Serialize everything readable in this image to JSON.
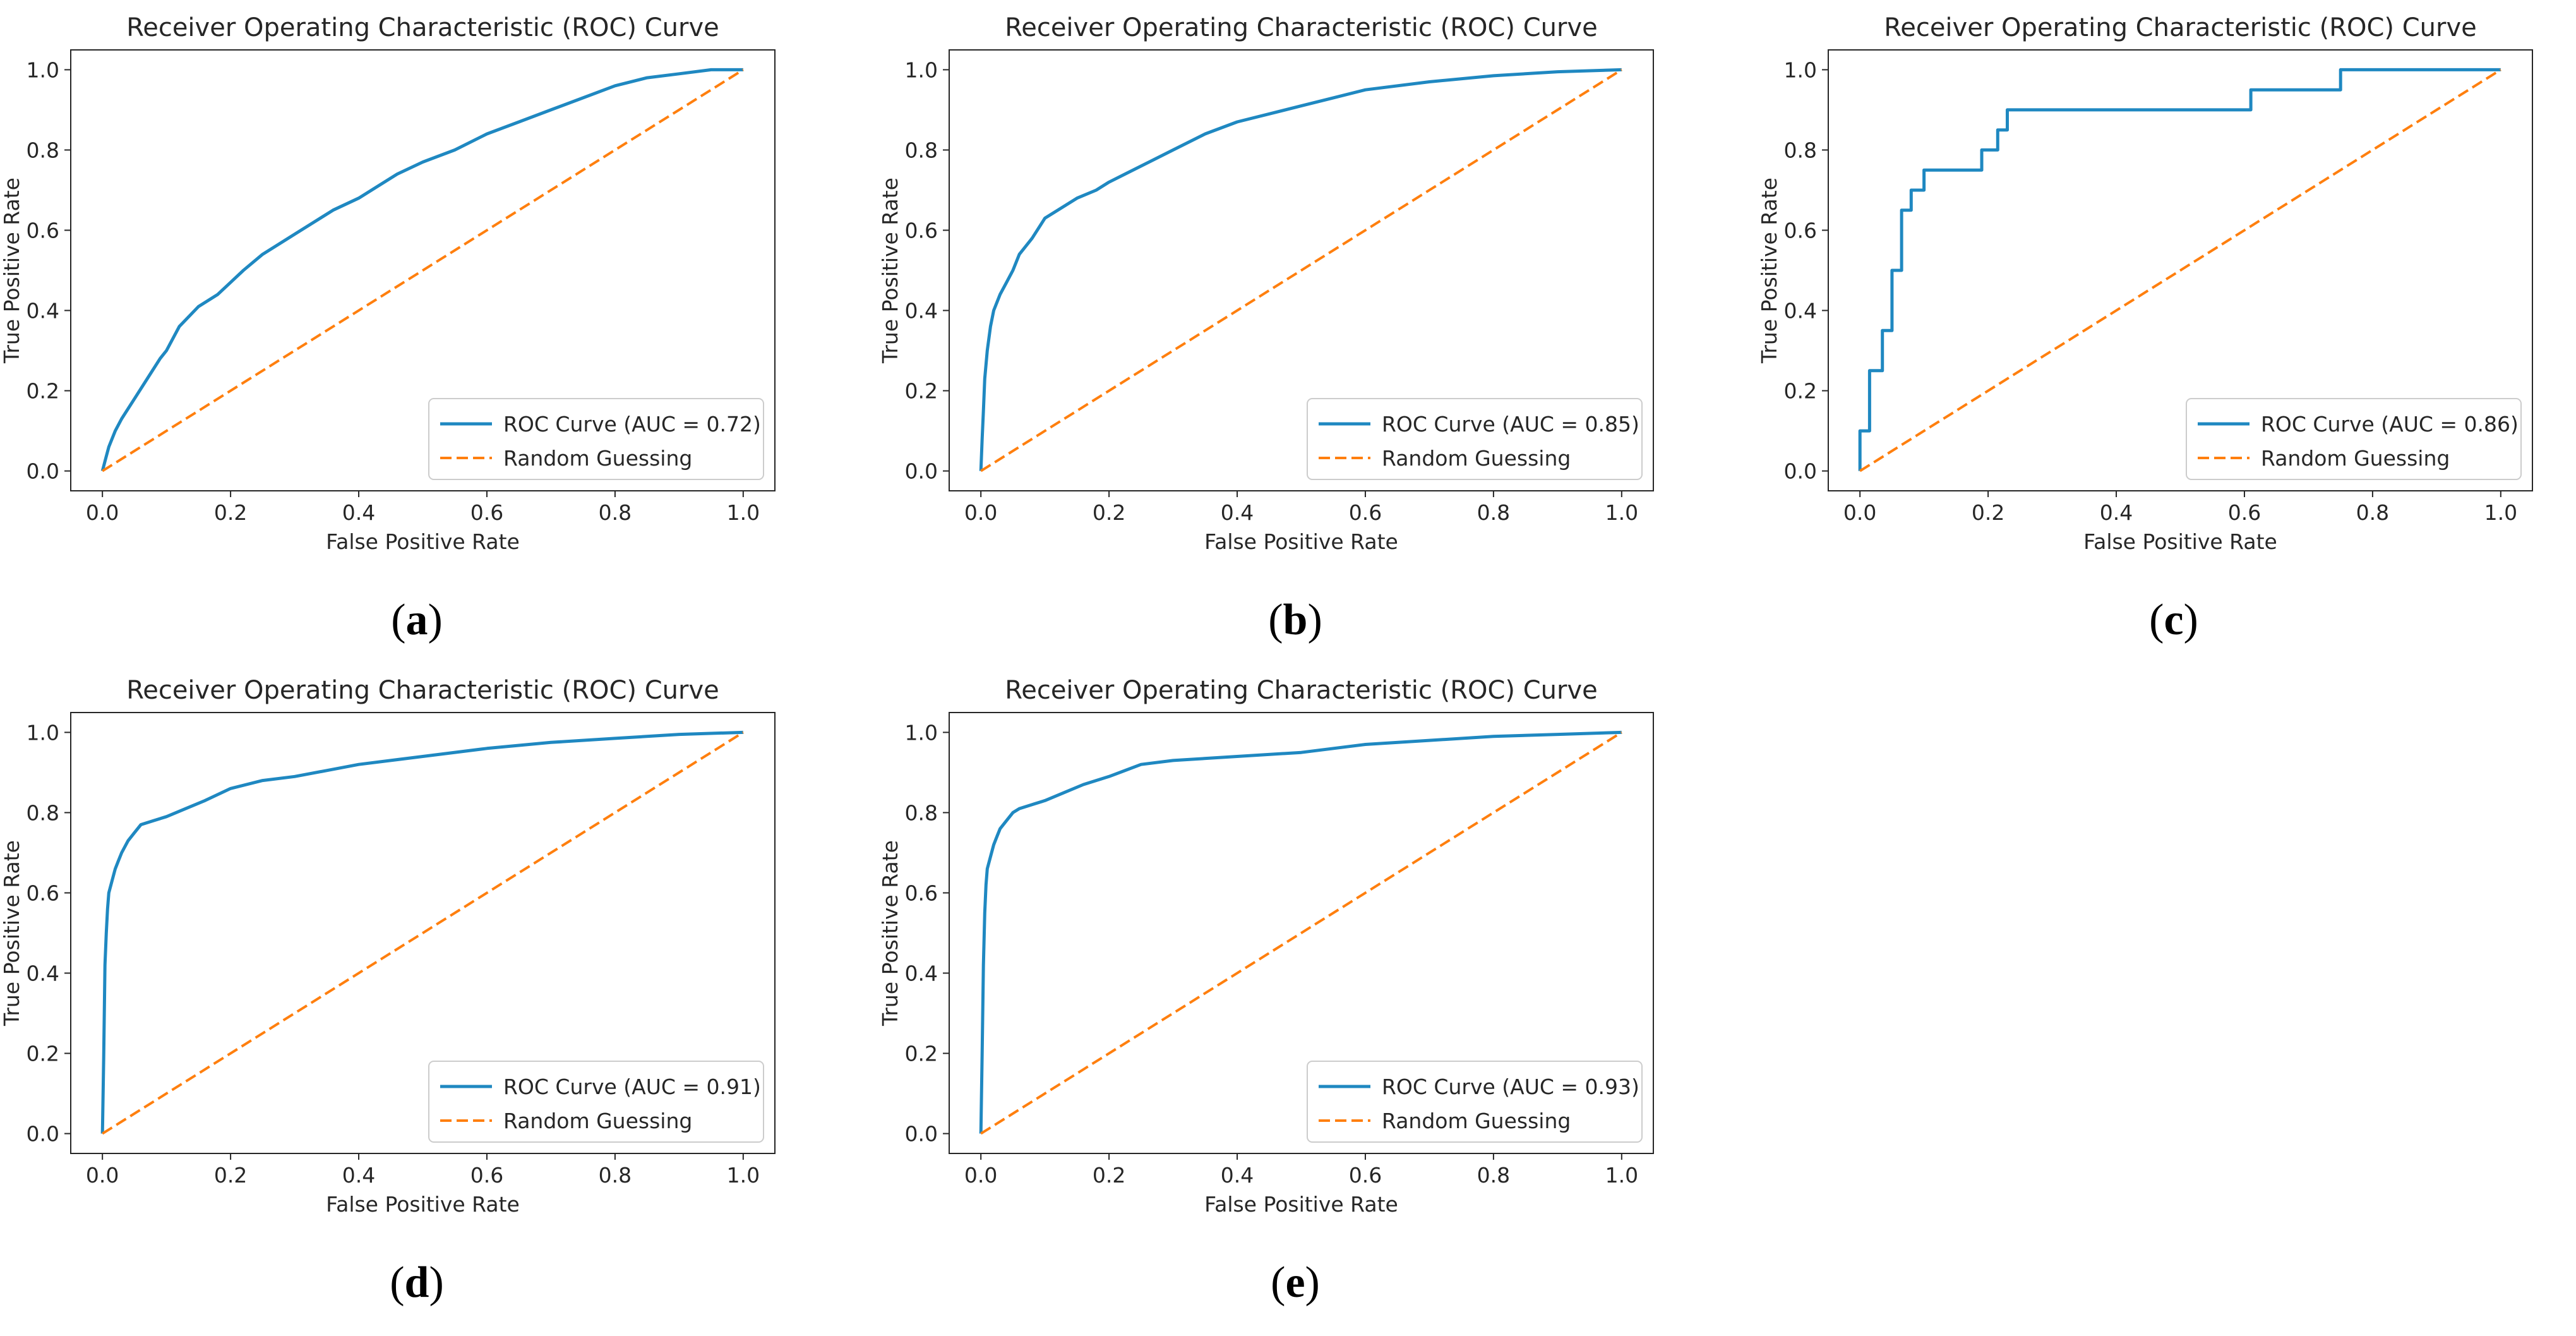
{
  "colors": {
    "roc": "#1f88c1",
    "random": "#ff7f0e",
    "axis": "#262626"
  },
  "chart_data": [
    {
      "type": "line",
      "caption": "a",
      "title": "Receiver Operating Characteristic (ROC) Curve",
      "xlabel": "False Positive Rate",
      "ylabel": "True Positive Rate",
      "xlim": [
        0,
        1
      ],
      "ylim": [
        0,
        1
      ],
      "xticks": [
        "0.0",
        "0.2",
        "0.4",
        "0.6",
        "0.8",
        "1.0"
      ],
      "yticks": [
        "0.0",
        "0.2",
        "0.4",
        "0.6",
        "0.8",
        "1.0"
      ],
      "legend_position": "lower-right",
      "grid": false,
      "series": [
        {
          "name": "ROC Curve (AUC = 0.72)",
          "style": "solid",
          "color": "#1f88c1",
          "x": [
            0,
            0.005,
            0.01,
            0.02,
            0.03,
            0.05,
            0.07,
            0.09,
            0.1,
            0.12,
            0.15,
            0.18,
            0.2,
            0.22,
            0.25,
            0.28,
            0.3,
            0.33,
            0.36,
            0.4,
            0.43,
            0.46,
            0.5,
            0.55,
            0.6,
            0.65,
            0.7,
            0.75,
            0.8,
            0.85,
            0.9,
            0.95,
            1.0
          ],
          "y": [
            0,
            0.03,
            0.06,
            0.1,
            0.13,
            0.18,
            0.23,
            0.28,
            0.3,
            0.36,
            0.41,
            0.44,
            0.47,
            0.5,
            0.54,
            0.57,
            0.59,
            0.62,
            0.65,
            0.68,
            0.71,
            0.74,
            0.77,
            0.8,
            0.84,
            0.87,
            0.9,
            0.93,
            0.96,
            0.98,
            0.99,
            1.0,
            1.0
          ]
        },
        {
          "name": "Random Guessing",
          "style": "dashed",
          "color": "#ff7f0e",
          "x": [
            0,
            1
          ],
          "y": [
            0,
            1
          ]
        }
      ]
    },
    {
      "type": "line",
      "caption": "b",
      "title": "Receiver Operating Characteristic (ROC) Curve",
      "xlabel": "False Positive Rate",
      "ylabel": "True Positive Rate",
      "xlim": [
        0,
        1
      ],
      "ylim": [
        0,
        1
      ],
      "xticks": [
        "0.0",
        "0.2",
        "0.4",
        "0.6",
        "0.8",
        "1.0"
      ],
      "yticks": [
        "0.0",
        "0.2",
        "0.4",
        "0.6",
        "0.8",
        "1.0"
      ],
      "legend_position": "lower-right",
      "grid": false,
      "series": [
        {
          "name": "ROC Curve (AUC = 0.85)",
          "style": "solid",
          "color": "#1f88c1",
          "x": [
            0,
            0.002,
            0.004,
            0.006,
            0.01,
            0.015,
            0.02,
            0.03,
            0.04,
            0.05,
            0.06,
            0.08,
            0.1,
            0.12,
            0.15,
            0.18,
            0.2,
            0.25,
            0.3,
            0.35,
            0.4,
            0.45,
            0.5,
            0.55,
            0.6,
            0.7,
            0.8,
            0.9,
            1.0
          ],
          "y": [
            0,
            0.08,
            0.15,
            0.23,
            0.3,
            0.36,
            0.4,
            0.44,
            0.47,
            0.5,
            0.54,
            0.58,
            0.63,
            0.65,
            0.68,
            0.7,
            0.72,
            0.76,
            0.8,
            0.84,
            0.87,
            0.89,
            0.91,
            0.93,
            0.95,
            0.97,
            0.985,
            0.995,
            1.0
          ]
        },
        {
          "name": "Random Guessing",
          "style": "dashed",
          "color": "#ff7f0e",
          "x": [
            0,
            1
          ],
          "y": [
            0,
            1
          ]
        }
      ]
    },
    {
      "type": "line",
      "caption": "c",
      "title": "Receiver Operating Characteristic (ROC) Curve",
      "xlabel": "False Positive Rate",
      "ylabel": "True Positive Rate",
      "xlim": [
        0,
        1
      ],
      "ylim": [
        0,
        1
      ],
      "xticks": [
        "0.0",
        "0.2",
        "0.4",
        "0.6",
        "0.8",
        "1.0"
      ],
      "yticks": [
        "0.0",
        "0.2",
        "0.4",
        "0.6",
        "0.8",
        "1.0"
      ],
      "legend_position": "lower-right",
      "grid": false,
      "series": [
        {
          "name": "ROC Curve (AUC = 0.86)",
          "style": "solid",
          "color": "#1f88c1",
          "x": [
            0,
            0,
            0.015,
            0.015,
            0.035,
            0.035,
            0.05,
            0.05,
            0.065,
            0.065,
            0.08,
            0.08,
            0.085,
            0.085,
            0.1,
            0.1,
            0.19,
            0.19,
            0.215,
            0.215,
            0.23,
            0.23,
            0.61,
            0.61,
            0.75,
            0.75,
            1.0
          ],
          "y": [
            0,
            0.1,
            0.1,
            0.25,
            0.25,
            0.35,
            0.35,
            0.5,
            0.5,
            0.65,
            0.65,
            0.7,
            0.7,
            0.7,
            0.7,
            0.75,
            0.75,
            0.8,
            0.8,
            0.85,
            0.85,
            0.9,
            0.9,
            0.95,
            0.95,
            1.0,
            1.0
          ]
        },
        {
          "name": "Random Guessing",
          "style": "dashed",
          "color": "#ff7f0e",
          "x": [
            0,
            1
          ],
          "y": [
            0,
            1
          ]
        }
      ]
    },
    {
      "type": "line",
      "caption": "d",
      "title": "Receiver Operating Characteristic (ROC) Curve",
      "xlabel": "False Positive Rate",
      "ylabel": "True Positive Rate",
      "xlim": [
        0,
        1
      ],
      "ylim": [
        0,
        1
      ],
      "xticks": [
        "0.0",
        "0.2",
        "0.4",
        "0.6",
        "0.8",
        "1.0"
      ],
      "yticks": [
        "0.0",
        "0.2",
        "0.4",
        "0.6",
        "0.8",
        "1.0"
      ],
      "legend_position": "lower-right",
      "grid": false,
      "series": [
        {
          "name": "ROC Curve (AUC = 0.91)",
          "style": "solid",
          "color": "#1f88c1",
          "x": [
            0,
            0.002,
            0.004,
            0.006,
            0.008,
            0.01,
            0.015,
            0.02,
            0.025,
            0.03,
            0.04,
            0.05,
            0.06,
            0.08,
            0.1,
            0.13,
            0.16,
            0.2,
            0.25,
            0.3,
            0.35,
            0.4,
            0.5,
            0.6,
            0.7,
            0.8,
            0.9,
            1.0
          ],
          "y": [
            0,
            0.19,
            0.42,
            0.5,
            0.56,
            0.6,
            0.63,
            0.66,
            0.68,
            0.7,
            0.73,
            0.75,
            0.77,
            0.78,
            0.79,
            0.81,
            0.83,
            0.86,
            0.88,
            0.89,
            0.905,
            0.92,
            0.94,
            0.96,
            0.975,
            0.985,
            0.995,
            1.0
          ]
        },
        {
          "name": "Random Guessing",
          "style": "dashed",
          "color": "#ff7f0e",
          "x": [
            0,
            1
          ],
          "y": [
            0,
            1
          ]
        }
      ]
    },
    {
      "type": "line",
      "caption": "e",
      "title": "Receiver Operating Characteristic (ROC) Curve",
      "xlabel": "False Positive Rate",
      "ylabel": "True Positive Rate",
      "xlim": [
        0,
        1
      ],
      "ylim": [
        0,
        1
      ],
      "xticks": [
        "0.0",
        "0.2",
        "0.4",
        "0.6",
        "0.8",
        "1.0"
      ],
      "yticks": [
        "0.0",
        "0.2",
        "0.4",
        "0.6",
        "0.8",
        "1.0"
      ],
      "legend_position": "lower-right",
      "grid": false,
      "series": [
        {
          "name": "ROC Curve (AUC = 0.93)",
          "style": "solid",
          "color": "#1f88c1",
          "x": [
            0,
            0.002,
            0.004,
            0.006,
            0.008,
            0.01,
            0.015,
            0.02,
            0.025,
            0.03,
            0.04,
            0.05,
            0.06,
            0.08,
            0.1,
            0.13,
            0.16,
            0.2,
            0.25,
            0.3,
            0.4,
            0.5,
            0.6,
            0.7,
            0.8,
            0.9,
            1.0
          ],
          "y": [
            0,
            0.2,
            0.42,
            0.55,
            0.62,
            0.66,
            0.69,
            0.72,
            0.74,
            0.76,
            0.78,
            0.8,
            0.81,
            0.82,
            0.83,
            0.85,
            0.87,
            0.89,
            0.92,
            0.93,
            0.94,
            0.95,
            0.97,
            0.98,
            0.99,
            0.995,
            1.0
          ]
        },
        {
          "name": "Random Guessing",
          "style": "dashed",
          "color": "#ff7f0e",
          "x": [
            0,
            1
          ],
          "y": [
            0,
            1
          ]
        }
      ]
    }
  ]
}
